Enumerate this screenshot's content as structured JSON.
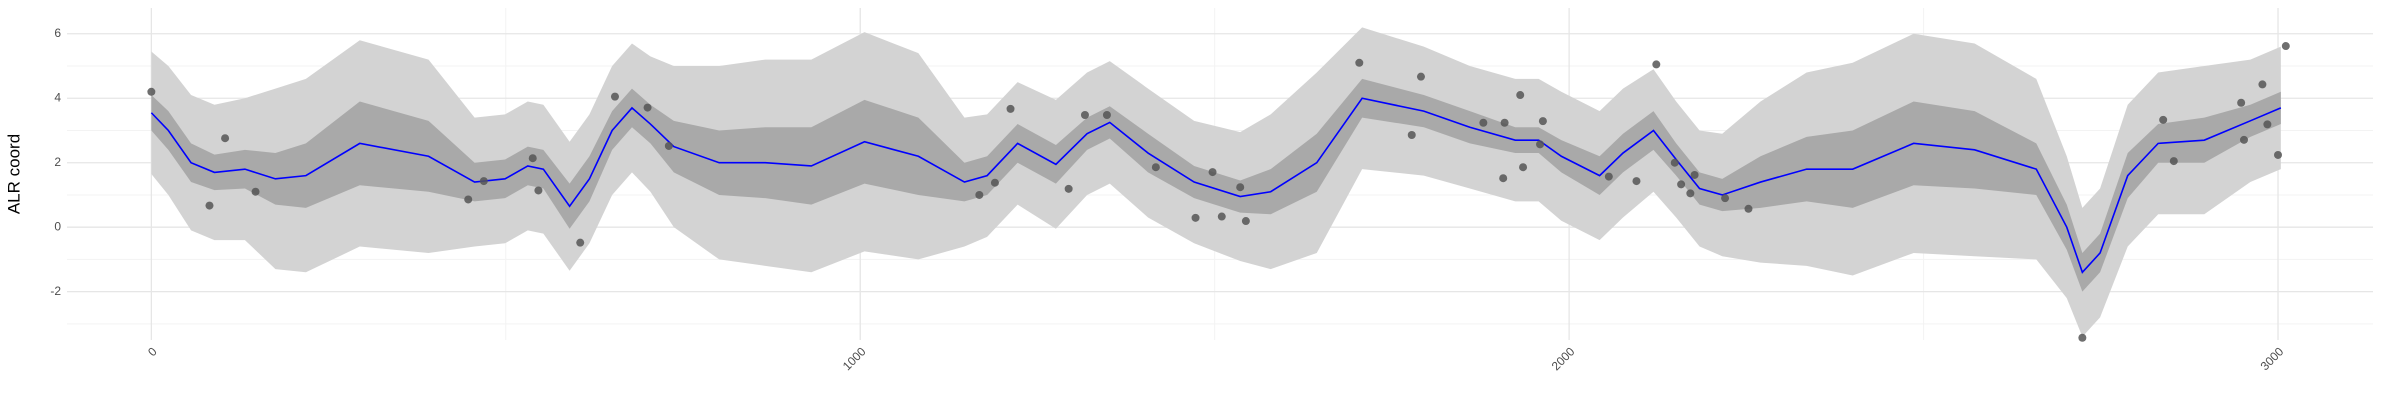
{
  "chart_data": {
    "type": "line",
    "y_label": "ALR coord",
    "xlim": [
      -119,
      3134
    ],
    "ylim": [
      -3.5,
      6.8
    ],
    "xticks": [
      0,
      1000,
      2000,
      3000
    ],
    "yticks": [
      -2,
      0,
      2,
      4,
      6
    ],
    "x_minor_ticks": [
      500,
      1500,
      2500
    ],
    "y_minor_ticks": [
      -3,
      -1,
      1,
      3,
      5
    ],
    "grid": true,
    "x": [
      0,
      24,
      56,
      89,
      132,
      175,
      218,
      294,
      391,
      456,
      499,
      531,
      553,
      590,
      618,
      650,
      678,
      704,
      737,
      801,
      866,
      931,
      1006,
      1082,
      1147,
      1179,
      1222,
      1276,
      1320,
      1352,
      1406,
      1471,
      1536,
      1579,
      1644,
      1708,
      1795,
      1860,
      1924,
      1957,
      1989,
      2043,
      2076,
      2119,
      2151,
      2184,
      2216,
      2270,
      2335,
      2400,
      2486,
      2572,
      2659,
      2702,
      2724,
      2749,
      2788,
      2831,
      2896,
      2961,
      3004
    ],
    "bands": [
      {
        "color": "#d3d3d3",
        "lower": [
          1.65,
          1.0,
          -0.1,
          -0.4,
          -0.4,
          -1.3,
          -1.4,
          -0.6,
          -0.8,
          -0.6,
          -0.5,
          -0.1,
          -0.2,
          -1.35,
          -0.5,
          1.0,
          1.7,
          1.1,
          0.0,
          -1.0,
          -1.2,
          -1.4,
          -0.75,
          -1.0,
          -0.6,
          -0.3,
          0.7,
          -0.05,
          1.0,
          1.35,
          0.3,
          -0.5,
          -1.05,
          -1.3,
          -0.8,
          1.8,
          1.6,
          1.2,
          0.8,
          0.8,
          0.2,
          -0.4,
          0.3,
          1.1,
          0.3,
          -0.6,
          -0.9,
          -1.1,
          -1.2,
          -1.5,
          -0.8,
          -0.9,
          -1.0,
          -2.2,
          -3.4,
          -2.8,
          -0.6,
          0.4,
          0.4,
          1.4,
          1.8
        ],
        "upper": [
          5.45,
          5.0,
          4.1,
          3.8,
          4.0,
          4.3,
          4.6,
          5.8,
          5.2,
          3.4,
          3.5,
          3.9,
          3.8,
          2.65,
          3.5,
          5.0,
          5.7,
          5.3,
          5.0,
          5.0,
          5.2,
          5.2,
          6.05,
          5.4,
          3.4,
          3.5,
          4.5,
          3.95,
          4.8,
          5.15,
          4.3,
          3.3,
          2.95,
          3.5,
          4.8,
          6.2,
          5.6,
          5.0,
          4.6,
          4.6,
          4.2,
          3.6,
          4.3,
          4.9,
          3.9,
          3.0,
          2.9,
          3.9,
          4.8,
          5.1,
          6.0,
          5.7,
          4.6,
          2.2,
          0.6,
          1.2,
          3.8,
          4.8,
          5.0,
          5.2,
          5.6
        ]
      },
      {
        "color": "#a9a9a9",
        "lower": [
          3.0,
          2.4,
          1.4,
          1.15,
          1.2,
          0.7,
          0.6,
          1.3,
          1.1,
          0.8,
          0.9,
          1.3,
          1.2,
          -0.05,
          0.8,
          2.4,
          3.1,
          2.6,
          1.7,
          1.0,
          0.9,
          0.7,
          1.35,
          1.0,
          0.8,
          1.0,
          2.0,
          1.35,
          2.4,
          2.75,
          1.7,
          0.9,
          0.45,
          0.4,
          1.1,
          3.4,
          3.1,
          2.6,
          2.3,
          2.3,
          1.7,
          1.0,
          1.7,
          2.4,
          1.6,
          0.7,
          0.5,
          0.6,
          0.8,
          0.6,
          1.3,
          1.2,
          1.0,
          -0.7,
          -2.0,
          -1.4,
          0.9,
          2.0,
          2.0,
          2.8,
          3.2
        ],
        "upper": [
          4.1,
          3.6,
          2.6,
          2.25,
          2.4,
          2.3,
          2.6,
          3.9,
          3.3,
          2.0,
          2.1,
          2.5,
          2.4,
          1.35,
          2.2,
          3.6,
          4.3,
          3.8,
          3.3,
          3.0,
          3.1,
          3.1,
          3.95,
          3.4,
          2.0,
          2.2,
          3.2,
          2.55,
          3.4,
          3.75,
          2.9,
          1.9,
          1.45,
          1.8,
          2.9,
          4.6,
          4.1,
          3.6,
          3.1,
          3.1,
          2.7,
          2.2,
          2.9,
          3.6,
          2.6,
          1.7,
          1.5,
          2.2,
          2.8,
          3.0,
          3.9,
          3.6,
          2.6,
          0.7,
          -0.8,
          -0.2,
          2.3,
          3.2,
          3.4,
          3.8,
          4.2
        ]
      }
    ],
    "line": {
      "color": "#0000ff",
      "values": [
        3.55,
        3.0,
        2.0,
        1.7,
        1.8,
        1.5,
        1.6,
        2.6,
        2.2,
        1.4,
        1.5,
        1.9,
        1.8,
        0.65,
        1.5,
        3.0,
        3.7,
        3.2,
        2.5,
        2.0,
        2.0,
        1.9,
        2.65,
        2.2,
        1.4,
        1.6,
        2.6,
        1.95,
        2.9,
        3.25,
        2.3,
        1.4,
        0.95,
        1.1,
        2.0,
        4.0,
        3.6,
        3.1,
        2.7,
        2.7,
        2.2,
        1.6,
        2.3,
        3.0,
        2.1,
        1.2,
        1.0,
        1.4,
        1.8,
        1.8,
        2.6,
        2.4,
        1.8,
        0.0,
        -1.4,
        -0.8,
        1.6,
        2.6,
        2.7,
        3.3,
        3.7
      ]
    },
    "points": {
      "color": "#555555",
      "x": [
        0,
        82,
        104,
        147,
        447,
        469,
        538,
        546,
        605,
        654,
        700,
        730,
        1168,
        1190,
        1212,
        1294,
        1317,
        1348,
        1417,
        1473,
        1497,
        1510,
        1536,
        1544,
        1704,
        1778,
        1791,
        1879,
        1907,
        1909,
        1931,
        1935,
        1959,
        1963,
        2056,
        2095,
        2123,
        2149,
        2158,
        2171,
        2177,
        2220,
        2253,
        2724,
        2838,
        2853,
        2948,
        2952,
        2978,
        2985,
        3000,
        3011
      ],
      "y": [
        4.2,
        0.67,
        2.76,
        1.1,
        0.86,
        1.43,
        2.14,
        1.14,
        -0.48,
        4.05,
        3.71,
        2.52,
        1.0,
        1.38,
        3.67,
        1.19,
        3.48,
        3.48,
        1.86,
        0.29,
        1.71,
        0.33,
        1.24,
        0.19,
        5.1,
        2.86,
        4.67,
        3.24,
        1.52,
        3.24,
        4.1,
        1.86,
        2.57,
        3.29,
        1.57,
        1.43,
        5.05,
        2.0,
        1.33,
        1.05,
        1.62,
        0.9,
        0.57,
        -3.43,
        3.33,
        2.05,
        3.86,
        2.71,
        4.43,
        3.19,
        2.24,
        5.62
      ]
    }
  }
}
